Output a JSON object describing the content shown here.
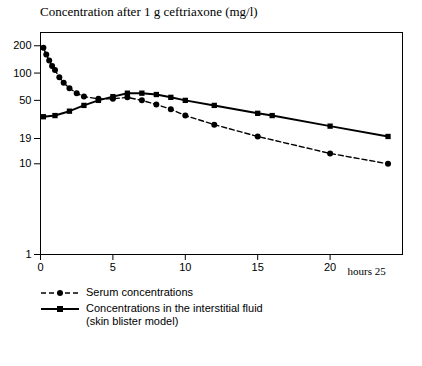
{
  "chart_data": {
    "type": "line",
    "title": "Concentration after 1 g ceftriaxone (mg/l)",
    "log": "y",
    "series": [
      {
        "name": "Serum concentrations",
        "color": "black",
        "line_style": "dashed",
        "marker": "circle",
        "x": [
          0.2,
          0.4,
          0.6,
          0.8,
          1.0,
          1.3,
          1.6,
          2.0,
          2.5,
          3.0,
          4.0,
          5.0,
          6.0,
          7.0,
          8.0,
          9.0,
          10.0,
          12.0,
          15.0,
          20.0,
          24.0
        ],
        "values": [
          190,
          160,
          138,
          120,
          108,
          90,
          78,
          68,
          60,
          55,
          52,
          52,
          54,
          50,
          45,
          40,
          34,
          27,
          20,
          13,
          10
        ]
      },
      {
        "name": "Concentrations in the interstitial fluid\n(skin blister model)",
        "color": "black",
        "line_style": "solid",
        "marker": "square",
        "x": [
          0.2,
          1.0,
          2.0,
          3.0,
          4.0,
          5.0,
          6.0,
          7.0,
          8.0,
          9.0,
          10.0,
          12.0,
          15.0,
          16.0,
          20.0,
          24.0
        ],
        "values": [
          33,
          34,
          38,
          44,
          50,
          55,
          60,
          60,
          58,
          54,
          50,
          44,
          36,
          34,
          26,
          20
        ]
      }
    ],
    "xlim": [
      0,
      25
    ],
    "xticks": [
      0,
      5,
      10,
      15,
      20
    ],
    "ylim": [
      1,
      280
    ],
    "yticks": [
      1,
      10,
      19,
      50,
      100,
      200
    ],
    "annotations": [
      {
        "text": "hours 25",
        "x": 21.2,
        "y": 0.72
      }
    ],
    "legend": "bottom"
  }
}
